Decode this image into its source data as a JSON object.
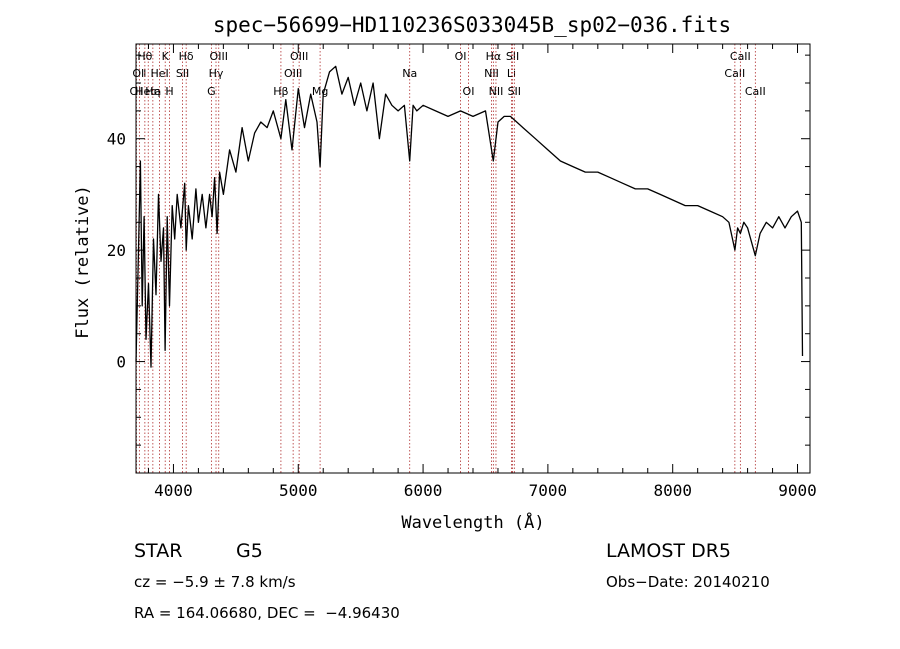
{
  "chart_data": {
    "type": "line",
    "title": "spec−56699−HD110236S033045B_sp02−036.fits",
    "xlabel": "Wavelength (Å)",
    "ylabel": "Flux (relative)",
    "xlim": [
      3700,
      9100
    ],
    "ylim": [
      -20,
      57
    ],
    "grid": false,
    "x_ticks": [
      {
        "value": 4000,
        "label": "4000"
      },
      {
        "value": 5000,
        "label": "5000"
      },
      {
        "value": 6000,
        "label": "6000"
      },
      {
        "value": 7000,
        "label": "7000"
      },
      {
        "value": 8000,
        "label": "8000"
      },
      {
        "value": 9000,
        "label": "9000"
      }
    ],
    "y_ticks": [
      {
        "value": 0,
        "label": "0"
      },
      {
        "value": 20,
        "label": "20"
      },
      {
        "value": 40,
        "label": "40"
      }
    ],
    "series": [
      {
        "x": [
          3700,
          3720,
          3735,
          3750,
          3765,
          3780,
          3800,
          3820,
          3840,
          3860,
          3880,
          3900,
          3920,
          3933,
          3950,
          3968,
          3990,
          4010,
          4030,
          4060,
          4090,
          4102,
          4120,
          4150,
          4180,
          4200,
          4230,
          4260,
          4290,
          4310,
          4330,
          4350,
          4370,
          4400,
          4450,
          4500,
          4550,
          4600,
          4650,
          4700,
          4750,
          4800,
          4861,
          4900,
          4950,
          5000,
          5050,
          5100,
          5150,
          5175,
          5200,
          5250,
          5300,
          5350,
          5400,
          5450,
          5500,
          5550,
          5600,
          5650,
          5700,
          5750,
          5800,
          5850,
          5893,
          5920,
          5950,
          6000,
          6100,
          6200,
          6300,
          6400,
          6500,
          6563,
          6600,
          6650,
          6700,
          6750,
          6800,
          6900,
          7000,
          7100,
          7200,
          7300,
          7400,
          7500,
          7600,
          7700,
          7800,
          7900,
          8000,
          8100,
          8200,
          8300,
          8400,
          8450,
          8498,
          8520,
          8542,
          8570,
          8600,
          8662,
          8700,
          8750,
          8800,
          8850,
          8900,
          8950,
          9000,
          9030,
          9040
        ],
        "y": [
          0,
          20,
          36,
          10,
          26,
          4,
          14,
          -1,
          22,
          12,
          30,
          18,
          24,
          2,
          26,
          10,
          28,
          22,
          30,
          24,
          32,
          20,
          28,
          22,
          31,
          25,
          30,
          24,
          30,
          26,
          33,
          23,
          34,
          30,
          38,
          34,
          42,
          36,
          41,
          43,
          42,
          45,
          40,
          47,
          38,
          49,
          42,
          48,
          43,
          35,
          48,
          52,
          53,
          48,
          51,
          46,
          50,
          45,
          50,
          40,
          48,
          46,
          45,
          46,
          36,
          46,
          45,
          46,
          45,
          44,
          45,
          44,
          45,
          36,
          43,
          44,
          44,
          43,
          42,
          40,
          38,
          36,
          35,
          34,
          34,
          33,
          32,
          31,
          31,
          30,
          29,
          28,
          28,
          27,
          26,
          25,
          20,
          24,
          23,
          25,
          24,
          19,
          23,
          25,
          24,
          26,
          24,
          26,
          27,
          25,
          1
        ]
      }
    ],
    "lines": [
      {
        "x": 3704,
        "label": "OⅡ",
        "row": 3
      },
      {
        "x": 3727,
        "label": "OⅡ",
        "row": 2
      },
      {
        "x": 3771,
        "label": "Hθ",
        "row": 1
      },
      {
        "x": 3798,
        "label": "Heta",
        "row": 3
      },
      {
        "x": 3835,
        "label": "Hη",
        "row": 3
      },
      {
        "x": 3889,
        "label": "HeI",
        "row": 2
      },
      {
        "x": 3934,
        "label": "K",
        "row": 1
      },
      {
        "x": 3969,
        "label": "H",
        "row": 3
      },
      {
        "x": 4073,
        "label": "SII",
        "row": 2
      },
      {
        "x": 4102,
        "label": "Hδ",
        "row": 1
      },
      {
        "x": 4304,
        "label": "G",
        "row": 3
      },
      {
        "x": 4341,
        "label": "Hγ",
        "row": 2
      },
      {
        "x": 4363,
        "label": "OIII",
        "row": 1
      },
      {
        "x": 4861,
        "label": "Hβ",
        "row": 3
      },
      {
        "x": 4959,
        "label": "OIII",
        "row": 2
      },
      {
        "x": 5007,
        "label": "OIII",
        "row": 1
      },
      {
        "x": 5175,
        "label": "Mg",
        "row": 3
      },
      {
        "x": 5893,
        "label": "Na",
        "row": 2
      },
      {
        "x": 6300,
        "label": "OI",
        "row": 1
      },
      {
        "x": 6364,
        "label": "OI",
        "row": 3
      },
      {
        "x": 6548,
        "label": "NII",
        "row": 2
      },
      {
        "x": 6563,
        "label": "Hα",
        "row": 1
      },
      {
        "x": 6584,
        "label": "NII",
        "row": 3
      },
      {
        "x": 6708,
        "label": "Li",
        "row": 2
      },
      {
        "x": 6717,
        "label": "SII",
        "row": 1
      },
      {
        "x": 6731,
        "label": "SII",
        "row": 3
      },
      {
        "x": 8498,
        "label": "CaII",
        "row": 2
      },
      {
        "x": 8542,
        "label": "CaII",
        "row": 1
      },
      {
        "x": 8662,
        "label": "CaII",
        "row": 3
      }
    ]
  },
  "info": {
    "object_class": "STAR",
    "subclass": "G5",
    "survey": "LAMOST DR5",
    "redshift": "cz = −5.9 ± 7.8 km/s",
    "obs_date": "Obs−Date: 20140210",
    "coords": "RA = 164.06680, DEC =  −4.96430"
  }
}
